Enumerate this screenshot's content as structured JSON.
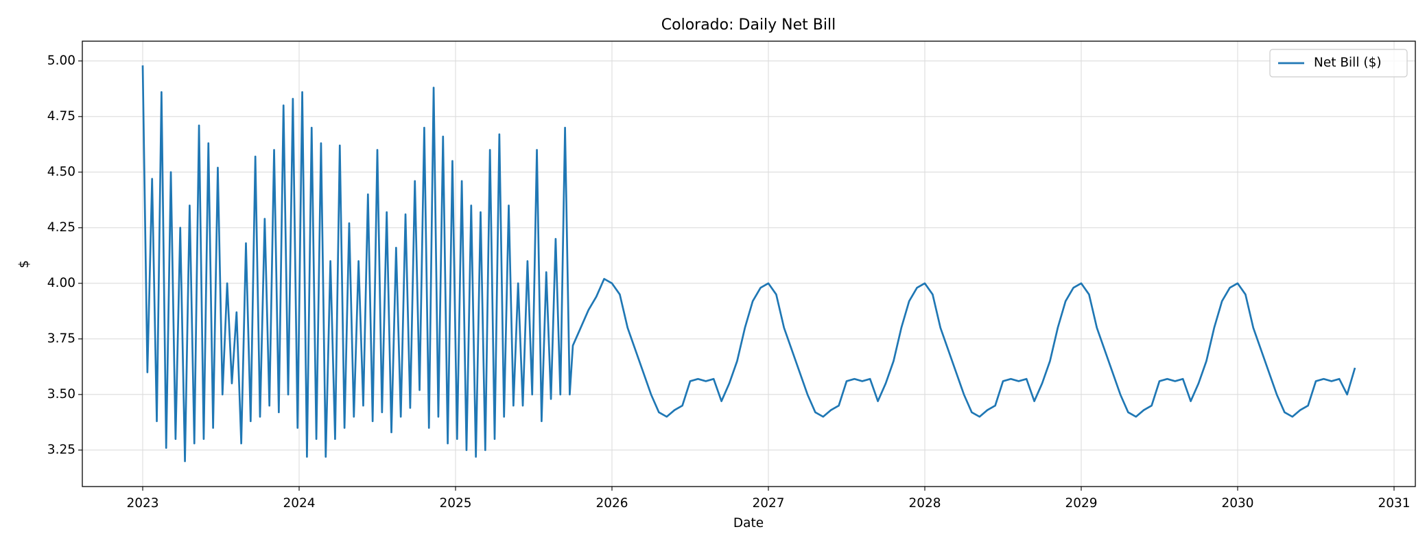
{
  "chart_data": {
    "type": "line",
    "title": "Colorado: Daily Net Bill",
    "xlabel": "Date",
    "ylabel": "$",
    "grid": true,
    "legend": "upper right",
    "xlim": [
      2022.614,
      2031.136
    ],
    "xticks": [
      2023,
      2024,
      2025,
      2026,
      2027,
      2028,
      2029,
      2030,
      2031
    ],
    "ylim": [
      3.086,
      5.089
    ],
    "yticks": [
      {
        "value": 3.25,
        "label": "3.25"
      },
      {
        "value": 3.5,
        "label": "3.50"
      },
      {
        "value": 3.75,
        "label": "3.75"
      },
      {
        "value": 4.0,
        "label": "4.00"
      },
      {
        "value": 4.25,
        "label": "4.25"
      },
      {
        "value": 4.5,
        "label": "4.50"
      },
      {
        "value": 4.75,
        "label": "4.75"
      },
      {
        "value": 5.0,
        "label": "5.00"
      }
    ],
    "x": [
      2023.0,
      2023.03,
      2023.06,
      2023.09,
      2023.12,
      2023.15,
      2023.18,
      2023.21,
      2023.24,
      2023.27,
      2023.3,
      2023.33,
      2023.36,
      2023.39,
      2023.42,
      2023.45,
      2023.48,
      2023.51,
      2023.54,
      2023.57,
      2023.6,
      2023.63,
      2023.66,
      2023.69,
      2023.72,
      2023.75,
      2023.78,
      2023.81,
      2023.84,
      2023.87,
      2023.9,
      2023.93,
      2023.96,
      2023.99,
      2024.02,
      2024.05,
      2024.08,
      2024.11,
      2024.14,
      2024.17,
      2024.2,
      2024.23,
      2024.26,
      2024.29,
      2024.32,
      2024.35,
      2024.38,
      2024.41,
      2024.44,
      2024.47,
      2024.5,
      2024.53,
      2024.56,
      2024.59,
      2024.62,
      2024.65,
      2024.68,
      2024.71,
      2024.74,
      2024.77,
      2024.8,
      2024.83,
      2024.86,
      2024.89,
      2024.92,
      2024.95,
      2024.98,
      2025.01,
      2025.04,
      2025.07,
      2025.1,
      2025.13,
      2025.16,
      2025.19,
      2025.22,
      2025.25,
      2025.28,
      2025.31,
      2025.34,
      2025.37,
      2025.4,
      2025.43,
      2025.46,
      2025.49,
      2025.52,
      2025.55,
      2025.58,
      2025.61,
      2025.64,
      2025.67,
      2025.7,
      2025.73,
      2025.75,
      2025.8,
      2025.85,
      2025.9,
      2025.95,
      2026.0,
      2026.05,
      2026.1,
      2026.15,
      2026.2,
      2026.25,
      2026.3,
      2026.35,
      2026.4,
      2026.45,
      2026.5,
      2026.55,
      2026.6,
      2026.65,
      2026.7,
      2026.75,
      2026.8,
      2026.85,
      2026.9,
      2026.95,
      2027.0,
      2027.05,
      2027.1,
      2027.15,
      2027.2,
      2027.25,
      2027.3,
      2027.35,
      2027.4,
      2027.45,
      2027.5,
      2027.55,
      2027.6,
      2027.65,
      2027.7,
      2027.75,
      2027.8,
      2027.85,
      2027.9,
      2027.95,
      2028.0,
      2028.05,
      2028.1,
      2028.15,
      2028.2,
      2028.25,
      2028.3,
      2028.35,
      2028.4,
      2028.45,
      2028.5,
      2028.55,
      2028.6,
      2028.65,
      2028.7,
      2028.75,
      2028.8,
      2028.85,
      2028.9,
      2028.95,
      2029.0,
      2029.05,
      2029.1,
      2029.15,
      2029.2,
      2029.25,
      2029.3,
      2029.35,
      2029.4,
      2029.45,
      2029.5,
      2029.55,
      2029.6,
      2029.65,
      2029.7,
      2029.75,
      2029.8,
      2029.85,
      2029.9,
      2029.95,
      2030.0,
      2030.05,
      2030.1,
      2030.15,
      2030.2,
      2030.25,
      2030.3,
      2030.35,
      2030.4,
      2030.45,
      2030.5,
      2030.55,
      2030.6,
      2030.65,
      2030.7,
      2030.75
    ],
    "series": [
      {
        "name": "Net Bill ($)",
        "color": "#1f77b4",
        "values": [
          4.98,
          3.6,
          4.47,
          3.38,
          4.86,
          3.26,
          4.5,
          3.3,
          4.25,
          3.2,
          4.35,
          3.28,
          4.71,
          3.3,
          4.63,
          3.35,
          4.52,
          3.5,
          4.0,
          3.55,
          3.87,
          3.28,
          4.18,
          3.38,
          4.57,
          3.4,
          4.29,
          3.45,
          4.6,
          3.42,
          4.8,
          3.5,
          4.83,
          3.35,
          4.86,
          3.22,
          4.7,
          3.3,
          4.63,
          3.22,
          4.1,
          3.3,
          4.62,
          3.35,
          4.27,
          3.4,
          4.1,
          3.45,
          4.4,
          3.38,
          4.6,
          3.42,
          4.32,
          3.33,
          4.16,
          3.4,
          4.31,
          3.44,
          4.46,
          3.52,
          4.7,
          3.35,
          4.88,
          3.4,
          4.66,
          3.28,
          4.55,
          3.3,
          4.46,
          3.25,
          4.35,
          3.22,
          4.32,
          3.25,
          4.6,
          3.3,
          4.67,
          3.4,
          4.35,
          3.45,
          4.0,
          3.45,
          4.1,
          3.5,
          4.6,
          3.38,
          4.05,
          3.48,
          4.2,
          3.5,
          4.7,
          3.5,
          3.72,
          3.8,
          3.88,
          3.94,
          4.02,
          4.0,
          3.95,
          3.8,
          3.7,
          3.6,
          3.5,
          3.42,
          3.4,
          3.43,
          3.45,
          3.56,
          3.57,
          3.56,
          3.57,
          3.47,
          3.55,
          3.65,
          3.8,
          3.92,
          3.98,
          4.0,
          3.95,
          3.8,
          3.7,
          3.6,
          3.5,
          3.42,
          3.4,
          3.43,
          3.45,
          3.56,
          3.57,
          3.56,
          3.57,
          3.47,
          3.55,
          3.65,
          3.8,
          3.92,
          3.98,
          4.0,
          3.95,
          3.8,
          3.7,
          3.6,
          3.5,
          3.42,
          3.4,
          3.43,
          3.45,
          3.56,
          3.57,
          3.56,
          3.57,
          3.47,
          3.55,
          3.65,
          3.8,
          3.92,
          3.98,
          4.0,
          3.95,
          3.8,
          3.7,
          3.6,
          3.5,
          3.42,
          3.4,
          3.43,
          3.45,
          3.56,
          3.57,
          3.56,
          3.57,
          3.47,
          3.55,
          3.65,
          3.8,
          3.92,
          3.98,
          4.0,
          3.95,
          3.8,
          3.7,
          3.6,
          3.5,
          3.42,
          3.4,
          3.43,
          3.45,
          3.56,
          3.57,
          3.56,
          3.57,
          3.5,
          3.62
        ]
      }
    ]
  }
}
